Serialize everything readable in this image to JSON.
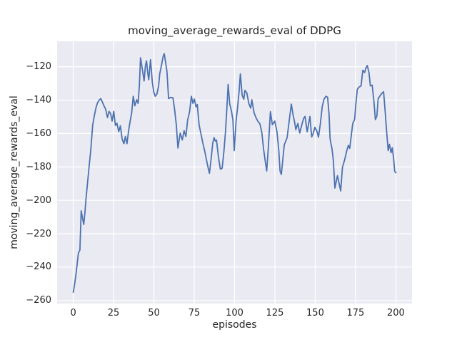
{
  "chart_data": {
    "type": "line",
    "title": "moving_average_rewards_eval of DDPG",
    "xlabel": "episodes",
    "ylabel": "moving_average_rewards_eval",
    "xlim": [
      -10,
      210
    ],
    "ylim": [
      -261.8,
      -104.8
    ],
    "grid": true,
    "legend": false,
    "xticks": {
      "values": [
        0,
        25,
        50,
        75,
        100,
        125,
        150,
        175,
        200
      ],
      "labels": [
        "0",
        "25",
        "50",
        "75",
        "100",
        "125",
        "150",
        "175",
        "200"
      ]
    },
    "yticks": {
      "values": [
        -120,
        -140,
        -160,
        -180,
        -200,
        -220,
        -240,
        -260
      ],
      "labels": [
        "−120",
        "−140",
        "−160",
        "−180",
        "−200",
        "−220",
        "−240",
        "−260"
      ]
    },
    "colors": {
      "line": "#4c72b0",
      "plot_bg": "#eaeaf2",
      "grid": "#ffffff",
      "text": "#262626",
      "figure_bg": "#ffffff"
    },
    "series": [
      {
        "name": "moving_average_rewards_eval",
        "points": [
          [
            0,
            -255
          ],
          [
            0.8,
            -250.5
          ],
          [
            1.6,
            -245
          ],
          [
            2.4,
            -238.5
          ],
          [
            3.2,
            -231.5
          ],
          [
            4.1,
            -229.8
          ],
          [
            4.9,
            -206.3
          ],
          [
            5.7,
            -210.5
          ],
          [
            6.5,
            -214.5
          ],
          [
            7.3,
            -206.5
          ],
          [
            7.9,
            -199.3
          ],
          [
            8.8,
            -190
          ],
          [
            9.8,
            -180.2
          ],
          [
            10.9,
            -169.6
          ],
          [
            12,
            -155.3
          ],
          [
            13.1,
            -149.1
          ],
          [
            14.2,
            -144.1
          ],
          [
            15.1,
            -141.5
          ],
          [
            16.1,
            -139.9
          ],
          [
            17.1,
            -139.1
          ],
          [
            18.2,
            -141.5
          ],
          [
            19.2,
            -143.8
          ],
          [
            20.1,
            -145.5
          ],
          [
            21.2,
            -150.5
          ],
          [
            22.2,
            -146.8
          ],
          [
            23.2,
            -148.2
          ],
          [
            24.1,
            -152.6
          ],
          [
            25.1,
            -146.8
          ],
          [
            26.1,
            -155.2
          ],
          [
            27.1,
            -153.8
          ],
          [
            28.2,
            -158.9
          ],
          [
            29.2,
            -155.4
          ],
          [
            30.3,
            -163.2
          ],
          [
            31.4,
            -166.1
          ],
          [
            32.3,
            -161.8
          ],
          [
            33.3,
            -166.1
          ],
          [
            34.3,
            -158.3
          ],
          [
            35.3,
            -152.6
          ],
          [
            36.2,
            -147.6
          ],
          [
            37.2,
            -137.7
          ],
          [
            38.2,
            -143.4
          ],
          [
            39.3,
            -139.8
          ],
          [
            40.2,
            -141.9
          ],
          [
            41,
            -131
          ],
          [
            41.7,
            -114.6
          ],
          [
            42.5,
            -119.5
          ],
          [
            43.3,
            -124.5
          ],
          [
            43.9,
            -128.5
          ],
          [
            44.7,
            -119.5
          ],
          [
            45.4,
            -116.5
          ],
          [
            46.1,
            -123
          ],
          [
            46.8,
            -127.8
          ],
          [
            47.9,
            -115.8
          ],
          [
            49,
            -129.2
          ],
          [
            49.9,
            -135
          ],
          [
            50.8,
            -137.7
          ],
          [
            51.9,
            -136.3
          ],
          [
            52.9,
            -131.5
          ],
          [
            53.6,
            -124.3
          ],
          [
            54.7,
            -119
          ],
          [
            55.7,
            -114
          ],
          [
            56.4,
            -112.2
          ],
          [
            57.3,
            -117.5
          ],
          [
            58.1,
            -122.8
          ],
          [
            59.1,
            -139.1
          ],
          [
            60.3,
            -138.4
          ],
          [
            61.8,
            -138.6
          ],
          [
            62.9,
            -146.2
          ],
          [
            63.9,
            -154.7
          ],
          [
            64.9,
            -168.7
          ],
          [
            66.3,
            -159.7
          ],
          [
            67.6,
            -163.9
          ],
          [
            68.7,
            -158.3
          ],
          [
            69.8,
            -161.8
          ],
          [
            70.9,
            -151.9
          ],
          [
            72.1,
            -147
          ],
          [
            73.2,
            -137.7
          ],
          [
            74.1,
            -141.9
          ],
          [
            75.1,
            -139.4
          ],
          [
            76.1,
            -144.1
          ],
          [
            76.9,
            -142.7
          ],
          [
            78,
            -154.7
          ],
          [
            79.2,
            -160.4
          ],
          [
            80.4,
            -166
          ],
          [
            81.5,
            -170.5
          ],
          [
            82.5,
            -175.5
          ],
          [
            83.5,
            -180
          ],
          [
            84.4,
            -183.8
          ],
          [
            85.5,
            -175
          ],
          [
            86.5,
            -165.5
          ],
          [
            87.3,
            -162.5
          ],
          [
            88,
            -164.5
          ],
          [
            88.8,
            -163.9
          ],
          [
            90,
            -174
          ],
          [
            91.2,
            -181.3
          ],
          [
            92.3,
            -180.8
          ],
          [
            93.4,
            -170.5
          ],
          [
            94.4,
            -159
          ],
          [
            95.2,
            -145
          ],
          [
            96,
            -130.6
          ],
          [
            97,
            -142.3
          ],
          [
            98,
            -146.2
          ],
          [
            99,
            -152
          ],
          [
            99.8,
            -170.3
          ],
          [
            100.9,
            -153
          ],
          [
            101.9,
            -144
          ],
          [
            102.8,
            -135
          ],
          [
            103.6,
            -124.3
          ],
          [
            104.7,
            -137
          ],
          [
            105.7,
            -139.5
          ],
          [
            106.4,
            -134.2
          ],
          [
            107.6,
            -135.7
          ],
          [
            108.8,
            -142
          ],
          [
            110,
            -144.8
          ],
          [
            110.7,
            -139.8
          ],
          [
            112.1,
            -147.6
          ],
          [
            113.3,
            -150.5
          ],
          [
            114.4,
            -152.6
          ],
          [
            115.7,
            -154.2
          ],
          [
            116.9,
            -159.5
          ],
          [
            118,
            -169.6
          ],
          [
            119.1,
            -177
          ],
          [
            119.9,
            -182.4
          ],
          [
            120.9,
            -169
          ],
          [
            122.2,
            -146.9
          ],
          [
            123.4,
            -154.7
          ],
          [
            124.9,
            -152.6
          ],
          [
            126.3,
            -159
          ],
          [
            127.4,
            -170
          ],
          [
            128.2,
            -182.4
          ],
          [
            129,
            -184.5
          ],
          [
            130.8,
            -166.8
          ],
          [
            132.6,
            -162.5
          ],
          [
            133.9,
            -152
          ],
          [
            135.2,
            -142.4
          ],
          [
            136.3,
            -149
          ],
          [
            137.2,
            -153
          ],
          [
            138,
            -157.6
          ],
          [
            139.2,
            -154
          ],
          [
            140.4,
            -159.7
          ],
          [
            141.6,
            -155
          ],
          [
            142.8,
            -151
          ],
          [
            143.7,
            -149.8
          ],
          [
            145,
            -159
          ],
          [
            146.7,
            -149.8
          ],
          [
            147.8,
            -162
          ],
          [
            148.6,
            -160.4
          ],
          [
            149.8,
            -156.3
          ],
          [
            151,
            -158.5
          ],
          [
            152,
            -162.2
          ],
          [
            153.2,
            -154
          ],
          [
            154.3,
            -144
          ],
          [
            155.4,
            -139.5
          ],
          [
            156.6,
            -137.7
          ],
          [
            157.7,
            -138.3
          ],
          [
            158.6,
            -149
          ],
          [
            159.2,
            -162.9
          ],
          [
            159.8,
            -166.4
          ],
          [
            160.4,
            -168.9
          ],
          [
            161.2,
            -176
          ],
          [
            162.2,
            -192.7
          ],
          [
            163.8,
            -185.2
          ],
          [
            165.8,
            -194.4
          ],
          [
            166.9,
            -180.2
          ],
          [
            168.3,
            -175.5
          ],
          [
            169.5,
            -170.5
          ],
          [
            170.5,
            -167.1
          ],
          [
            171.4,
            -168.9
          ],
          [
            172.4,
            -160.5
          ],
          [
            173.3,
            -153.8
          ],
          [
            174.4,
            -151.7
          ],
          [
            175.2,
            -142
          ],
          [
            176.1,
            -133.5
          ],
          [
            177.2,
            -132.2
          ],
          [
            178.4,
            -131.5
          ],
          [
            179.5,
            -122.1
          ],
          [
            180.6,
            -123.5
          ],
          [
            181.4,
            -120.8
          ],
          [
            182.3,
            -119.3
          ],
          [
            183.3,
            -123.5
          ],
          [
            184.2,
            -131.5
          ],
          [
            185.3,
            -131
          ],
          [
            186.4,
            -141
          ],
          [
            187.3,
            -151.7
          ],
          [
            188.2,
            -149.5
          ],
          [
            189,
            -139.2
          ],
          [
            190.2,
            -137.3
          ],
          [
            191.3,
            -135.9
          ],
          [
            192.4,
            -135
          ],
          [
            193.3,
            -146.2
          ],
          [
            194.2,
            -158
          ],
          [
            195.2,
            -170.3
          ],
          [
            196,
            -166.5
          ],
          [
            197,
            -171.5
          ],
          [
            197.8,
            -168.5
          ],
          [
            198.6,
            -175
          ],
          [
            199.3,
            -182.7
          ],
          [
            200,
            -183.5
          ]
        ]
      }
    ]
  }
}
